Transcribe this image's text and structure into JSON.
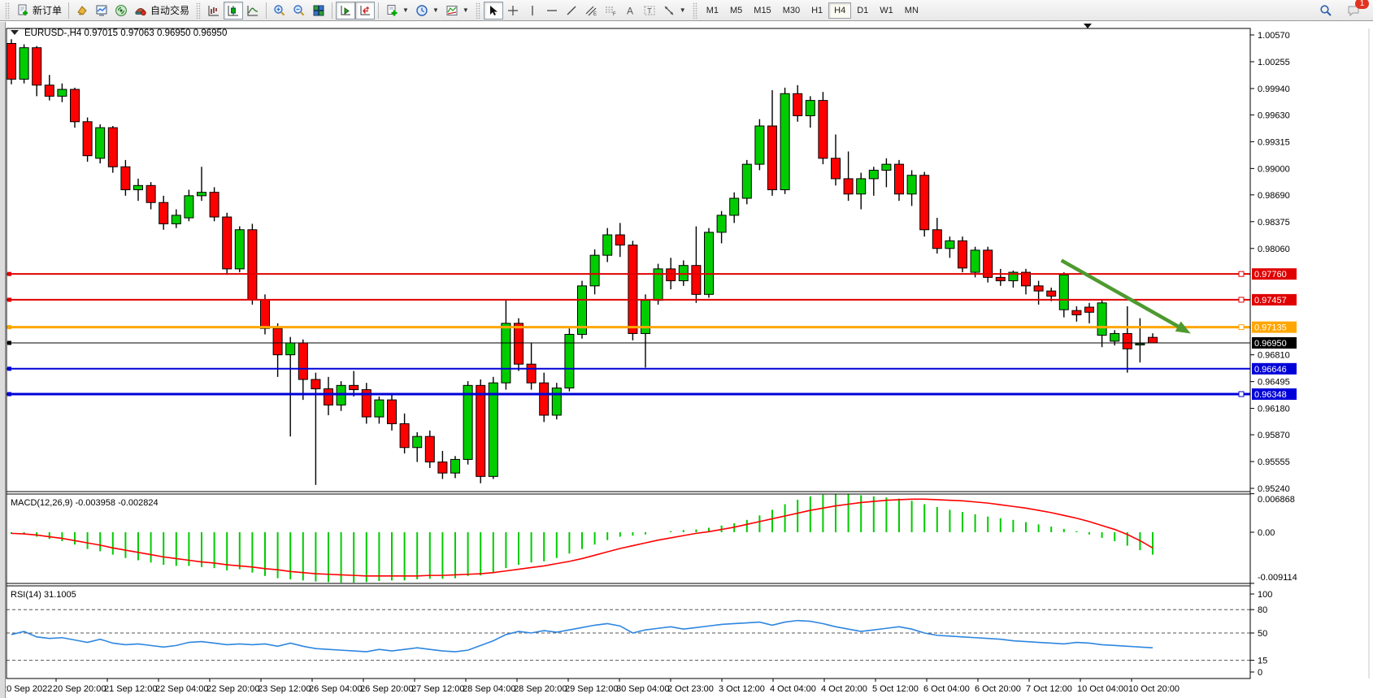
{
  "toolbar": {
    "new_order_label": "新订单",
    "auto_trading_label": "自动交易",
    "timeframes": [
      "M1",
      "M5",
      "M15",
      "M30",
      "H1",
      "H4",
      "D1",
      "W1",
      "MN"
    ],
    "notification_count": "1"
  },
  "chart": {
    "title_text": "EURUSD-,H4  0.97015 0.97063 0.96950 0.96950",
    "symbol": "EURUSD-",
    "period": "H4",
    "ohlc": {
      "open": "0.97015",
      "high": "0.97063",
      "low": "0.96950",
      "close": "0.96950"
    },
    "macd": {
      "label": "MACD(12,26,9) -0.003958 -0.002824"
    },
    "rsi": {
      "label": "RSI(14) 31.1005"
    }
  },
  "chart_data": {
    "type": "candlestick",
    "title": "EURUSD- H4",
    "main": {
      "ylim": [
        0.9524,
        1.0057
      ],
      "axis_ticks": [
        "1.00570",
        "1.00255",
        "0.99940",
        "0.99630",
        "0.99315",
        "0.99000",
        "0.98690",
        "0.98375",
        "0.98060",
        "0.96810",
        "0.96495",
        "0.96180",
        "0.95870",
        "0.95555",
        "0.95240"
      ],
      "up_color": "#00cd00",
      "down_color": "#ff0000",
      "candles": [
        [
          1.0047,
          1.0052,
          0.9999,
          1.0005
        ],
        [
          1.0005,
          1.0046,
          1.0,
          1.0042
        ],
        [
          1.0042,
          1.0044,
          0.9985,
          0.9998
        ],
        [
          0.9998,
          1.001,
          0.998,
          0.9985
        ],
        [
          0.9985,
          1.0,
          0.9978,
          0.9993
        ],
        [
          0.9993,
          0.9995,
          0.9948,
          0.9955
        ],
        [
          0.9955,
          0.996,
          0.9908,
          0.9915
        ],
        [
          0.9912,
          0.9952,
          0.9906,
          0.9948
        ],
        [
          0.9948,
          0.995,
          0.9895,
          0.9902
        ],
        [
          0.9902,
          0.991,
          0.9868,
          0.9875
        ],
        [
          0.9875,
          0.9888,
          0.9862,
          0.988
        ],
        [
          0.988,
          0.9884,
          0.9852,
          0.986
        ],
        [
          0.986,
          0.9868,
          0.9828,
          0.9835
        ],
        [
          0.9835,
          0.9852,
          0.983,
          0.9845
        ],
        [
          0.9842,
          0.9875,
          0.9838,
          0.9868
        ],
        [
          0.9868,
          0.9902,
          0.9862,
          0.9872
        ],
        [
          0.9872,
          0.9878,
          0.9838,
          0.9843
        ],
        [
          0.9843,
          0.9848,
          0.9775,
          0.9782
        ],
        [
          0.9782,
          0.9832,
          0.9778,
          0.9828
        ],
        [
          0.9828,
          0.9835,
          0.974,
          0.9746
        ],
        [
          0.9746,
          0.9752,
          0.9705,
          0.9712
        ],
        [
          0.9712,
          0.9718,
          0.9655,
          0.9681
        ],
        [
          0.9681,
          0.9702,
          0.9585,
          0.9695
        ],
        [
          0.9695,
          0.9699,
          0.9628,
          0.9652
        ],
        [
          0.9652,
          0.966,
          0.9528,
          0.9641
        ],
        [
          0.9641,
          0.9655,
          0.961,
          0.9622
        ],
        [
          0.9622,
          0.965,
          0.9615,
          0.9645
        ],
        [
          0.9645,
          0.9662,
          0.9632,
          0.964
        ],
        [
          0.964,
          0.9648,
          0.96,
          0.9608
        ],
        [
          0.9608,
          0.9632,
          0.96,
          0.9628
        ],
        [
          0.9628,
          0.9635,
          0.9592,
          0.96
        ],
        [
          0.96,
          0.9612,
          0.9565,
          0.9572
        ],
        [
          0.9572,
          0.959,
          0.9555,
          0.9585
        ],
        [
          0.9585,
          0.9592,
          0.9548,
          0.9555
        ],
        [
          0.9555,
          0.9568,
          0.9535,
          0.9542
        ],
        [
          0.9542,
          0.9562,
          0.9536,
          0.9558
        ],
        [
          0.9558,
          0.965,
          0.9552,
          0.9645
        ],
        [
          0.9645,
          0.9652,
          0.953,
          0.9538
        ],
        [
          0.9538,
          0.9655,
          0.9535,
          0.9648
        ],
        [
          0.9648,
          0.9745,
          0.964,
          0.9718
        ],
        [
          0.9718,
          0.9724,
          0.9662,
          0.967
        ],
        [
          0.967,
          0.9695,
          0.964,
          0.9648
        ],
        [
          0.9648,
          0.966,
          0.9602,
          0.961
        ],
        [
          0.961,
          0.9648,
          0.9605,
          0.9642
        ],
        [
          0.9642,
          0.9712,
          0.9638,
          0.9705
        ],
        [
          0.9705,
          0.9768,
          0.97,
          0.9762
        ],
        [
          0.9762,
          0.9805,
          0.9752,
          0.9798
        ],
        [
          0.9798,
          0.983,
          0.979,
          0.9822
        ],
        [
          0.9822,
          0.9836,
          0.9796,
          0.981
        ],
        [
          0.981,
          0.9815,
          0.9698,
          0.9706
        ],
        [
          0.9706,
          0.9752,
          0.9666,
          0.9745
        ],
        [
          0.9745,
          0.9788,
          0.974,
          0.9782
        ],
        [
          0.9782,
          0.9795,
          0.9758,
          0.9768
        ],
        [
          0.9768,
          0.9792,
          0.9762,
          0.9786
        ],
        [
          0.9786,
          0.9832,
          0.9742,
          0.9752
        ],
        [
          0.9752,
          0.983,
          0.9748,
          0.9825
        ],
        [
          0.9825,
          0.985,
          0.9812,
          0.9845
        ],
        [
          0.9845,
          0.9872,
          0.9836,
          0.9865
        ],
        [
          0.9865,
          0.991,
          0.9858,
          0.9905
        ],
        [
          0.9905,
          0.9958,
          0.9898,
          0.995
        ],
        [
          0.995,
          0.9992,
          0.9868,
          0.9875
        ],
        [
          0.9875,
          0.9995,
          0.987,
          0.9988
        ],
        [
          0.9988,
          0.9998,
          0.9955,
          0.9962
        ],
        [
          0.9962,
          0.9985,
          0.9948,
          0.998
        ],
        [
          0.998,
          0.999,
          0.9905,
          0.9912
        ],
        [
          0.9912,
          0.994,
          0.988,
          0.9888
        ],
        [
          0.9888,
          0.992,
          0.9862,
          0.987
        ],
        [
          0.987,
          0.9895,
          0.9852,
          0.9888
        ],
        [
          0.9888,
          0.9902,
          0.9868,
          0.9898
        ],
        [
          0.9898,
          0.9912,
          0.9878,
          0.9905
        ],
        [
          0.9905,
          0.991,
          0.9862,
          0.987
        ],
        [
          0.987,
          0.9898,
          0.9856,
          0.9892
        ],
        [
          0.9892,
          0.9896,
          0.982,
          0.9828
        ],
        [
          0.9828,
          0.9842,
          0.98,
          0.9806
        ],
        [
          0.9806,
          0.982,
          0.9795,
          0.9815
        ],
        [
          0.9815,
          0.982,
          0.9778,
          0.9783
        ],
        [
          0.9778,
          0.9808,
          0.9772,
          0.9804
        ],
        [
          0.9804,
          0.9808,
          0.9766,
          0.9772
        ],
        [
          0.9772,
          0.9782,
          0.9762,
          0.9768
        ],
        [
          0.9768,
          0.978,
          0.976,
          0.9778
        ],
        [
          0.9778,
          0.9782,
          0.9752,
          0.9762
        ],
        [
          0.9762,
          0.9768,
          0.974,
          0.9756
        ],
        [
          0.9756,
          0.976,
          0.9744,
          0.975
        ],
        [
          0.9734,
          0.9778,
          0.9725,
          0.9775
        ],
        [
          0.9733,
          0.9738,
          0.972,
          0.9728
        ],
        [
          0.9737,
          0.9742,
          0.9718,
          0.9731
        ],
        [
          0.9704,
          0.9745,
          0.969,
          0.9742
        ],
        [
          0.9697,
          0.971,
          0.9692,
          0.9706
        ],
        [
          0.9706,
          0.9738,
          0.966,
          0.9688
        ],
        [
          0.9693,
          0.9724,
          0.9672,
          0.9694
        ],
        [
          0.97015,
          0.97063,
          0.9695,
          0.9695
        ]
      ],
      "price_lines": [
        {
          "price": 0.9776,
          "label": "0.97760",
          "color": "#e00000",
          "width": 2,
          "handle": true
        },
        {
          "price": 0.97457,
          "label": "0.97457",
          "color": "#e00000",
          "width": 2,
          "handle": true
        },
        {
          "price": 0.97135,
          "label": "0.97135",
          "color": "#ffa600",
          "width": 3,
          "handle": true
        },
        {
          "price": 0.9695,
          "label": "0.96950",
          "color": "#000000",
          "width": 1,
          "handle": false
        },
        {
          "price": 0.96646,
          "label": "0.96646",
          "color": "#0000d8",
          "width": 2,
          "handle": false
        },
        {
          "price": 0.96348,
          "label": "0.96348",
          "color": "#0000d8",
          "width": 3,
          "handle": true
        }
      ],
      "trend_arrow": {
        "from": {
          "index": 82.8,
          "price": 0.9792
        },
        "to": {
          "index": 93,
          "price": 0.9706
        },
        "color": "#4e9a30"
      }
    },
    "macd": {
      "label": "MACD(12,26,9) -0.003958 -0.002824",
      "axis_ticks": [
        "0.006868",
        "0.00",
        "-0.009114"
      ],
      "axis_values": [
        0.006868,
        0.0,
        -0.009114
      ],
      "histogram_color": "#00cc00",
      "signal_color": "#ff0000",
      "histogram": [
        -0.0003,
        -0.0004,
        -0.0008,
        -0.0012,
        -0.0016,
        -0.0022,
        -0.003,
        -0.0034,
        -0.004,
        -0.0046,
        -0.005,
        -0.0054,
        -0.0058,
        -0.006,
        -0.006,
        -0.0062,
        -0.0064,
        -0.0068,
        -0.0066,
        -0.0072,
        -0.0078,
        -0.0082,
        -0.0084,
        -0.0086,
        -0.0088,
        -0.0089,
        -0.009,
        -0.009,
        -0.0089,
        -0.0087,
        -0.0086,
        -0.0086,
        -0.0084,
        -0.0083,
        -0.0083,
        -0.0082,
        -0.0078,
        -0.0077,
        -0.0072,
        -0.0064,
        -0.0058,
        -0.0054,
        -0.0052,
        -0.0046,
        -0.0038,
        -0.003,
        -0.0022,
        -0.0014,
        -0.0008,
        -0.0006,
        -0.0004,
        0.0,
        0.0002,
        0.0004,
        0.0005,
        0.0008,
        0.0012,
        0.0016,
        0.0022,
        0.003,
        0.004,
        0.005,
        0.0058,
        0.0064,
        0.0067,
        0.0068,
        0.0068,
        0.0066,
        0.0064,
        0.0062,
        0.006,
        0.0056,
        0.005,
        0.0045,
        0.004,
        0.0036,
        0.0032,
        0.0028,
        0.0025,
        0.0022,
        0.0018,
        0.0014,
        0.001,
        0.0006,
        0.0002,
        -0.0004,
        -0.001,
        -0.0016,
        -0.0024,
        -0.0032,
        -0.004
      ],
      "signal": [
        -0.0002,
        -0.0003,
        -0.0005,
        -0.0008,
        -0.0011,
        -0.0015,
        -0.0019,
        -0.0023,
        -0.0028,
        -0.0032,
        -0.0036,
        -0.004,
        -0.0044,
        -0.0047,
        -0.005,
        -0.0053,
        -0.0055,
        -0.0058,
        -0.006,
        -0.0062,
        -0.0065,
        -0.0067,
        -0.007,
        -0.0072,
        -0.0074,
        -0.0075,
        -0.0076,
        -0.0077,
        -0.0078,
        -0.0078,
        -0.0078,
        -0.0078,
        -0.0078,
        -0.0077,
        -0.0077,
        -0.0076,
        -0.0075,
        -0.0074,
        -0.0072,
        -0.0069,
        -0.0066,
        -0.0063,
        -0.006,
        -0.0056,
        -0.0052,
        -0.0047,
        -0.0041,
        -0.0035,
        -0.0029,
        -0.0024,
        -0.0019,
        -0.0014,
        -0.001,
        -0.0006,
        -0.0002,
        0.0001,
        0.0005,
        0.0009,
        0.0014,
        0.0019,
        0.0024,
        0.0029,
        0.0034,
        0.0039,
        0.0043,
        0.0047,
        0.005,
        0.0053,
        0.0055,
        0.0057,
        0.0058,
        0.0059,
        0.0059,
        0.0058,
        0.0057,
        0.0056,
        0.0054,
        0.0052,
        0.0049,
        0.0046,
        0.0043,
        0.0039,
        0.0035,
        0.003,
        0.0025,
        0.0019,
        0.0012,
        0.0005,
        -0.0004,
        -0.0015,
        -0.0028
      ]
    },
    "rsi": {
      "label": "RSI(14) 31.1005",
      "axis_ticks": [
        "100",
        "80",
        "50",
        "15",
        "0"
      ],
      "axis_values": [
        100,
        80,
        50,
        15,
        0
      ],
      "levels": [
        80,
        50,
        15
      ],
      "line_color": "#2e86e0",
      "values": [
        48,
        52,
        45,
        43,
        44,
        41,
        38,
        42,
        37,
        35,
        36,
        34,
        32,
        34,
        38,
        39,
        37,
        35,
        36,
        35,
        36,
        33,
        37,
        33,
        30,
        29,
        28,
        27,
        26,
        29,
        27,
        29,
        31,
        29,
        27,
        26,
        28,
        34,
        40,
        48,
        52,
        50,
        53,
        51,
        54,
        57,
        60,
        62,
        59,
        50,
        54,
        56,
        58,
        55,
        57,
        59,
        61,
        62,
        63,
        64,
        60,
        64,
        66,
        65,
        62,
        58,
        55,
        52,
        54,
        56,
        58,
        55,
        50,
        47,
        46,
        45,
        44,
        43,
        42,
        40,
        39,
        38,
        37,
        36,
        38,
        37,
        35,
        34,
        33,
        32,
        31.1
      ]
    },
    "x_labels": [
      "20 Sep 2022",
      "20 Sep 20:00",
      "21 Sep 12:00",
      "22 Sep 04:00",
      "22 Sep 20:00",
      "23 Sep 12:00",
      "26 Sep 04:00",
      "26 Sep 20:00",
      "27 Sep 12:00",
      "28 Sep 04:00",
      "28 Sep 20:00",
      "29 Sep 12:00",
      "30 Sep 04:00",
      "2 Oct 23:00",
      "3 Oct 12:00",
      "4 Oct 04:00",
      "4 Oct 20:00",
      "5 Oct 12:00",
      "6 Oct 04:00",
      "6 Oct 20:00",
      "7 Oct 12:00",
      "10 Oct 04:00",
      "10 Oct 20:00"
    ],
    "label_every_n_candles": 4
  }
}
